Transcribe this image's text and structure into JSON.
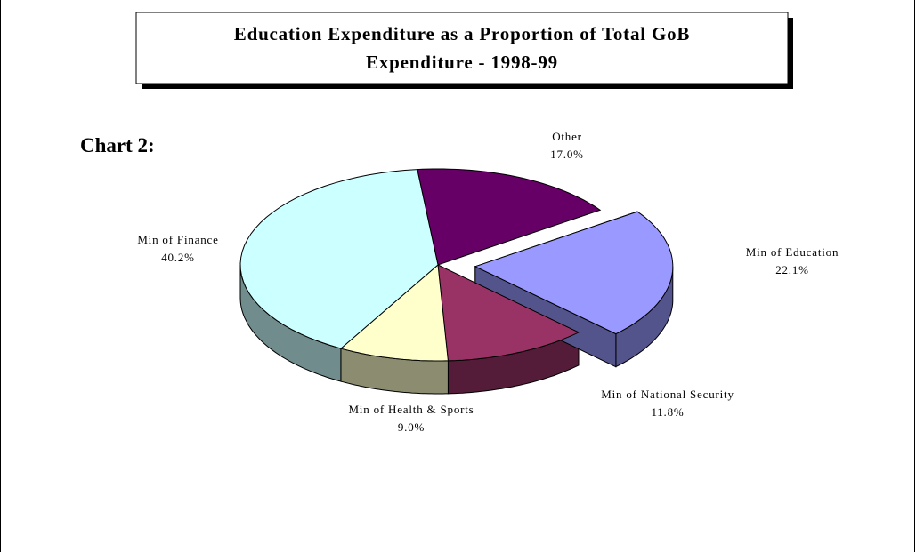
{
  "chart_data": {
    "type": "pie",
    "title": [
      "Education Expenditure as a Proportion of Total GoB",
      "Expenditure - 1998-99"
    ],
    "subtitle": "Chart 2:",
    "categories": [
      "Other",
      "Min of Education",
      "Min of National Security",
      "Min of Health & Sports",
      "Min of Finance"
    ],
    "values": [
      17.0,
      22.1,
      11.8,
      9.0,
      40.2
    ],
    "value_labels": [
      "17.0%",
      "22.1%",
      "11.8%",
      "9.0%",
      "40.2%"
    ],
    "colors": [
      "#660066",
      "#9999ff",
      "#993366",
      "#ffffcc",
      "#ccffff"
    ],
    "exploded": "Min of Education"
  }
}
